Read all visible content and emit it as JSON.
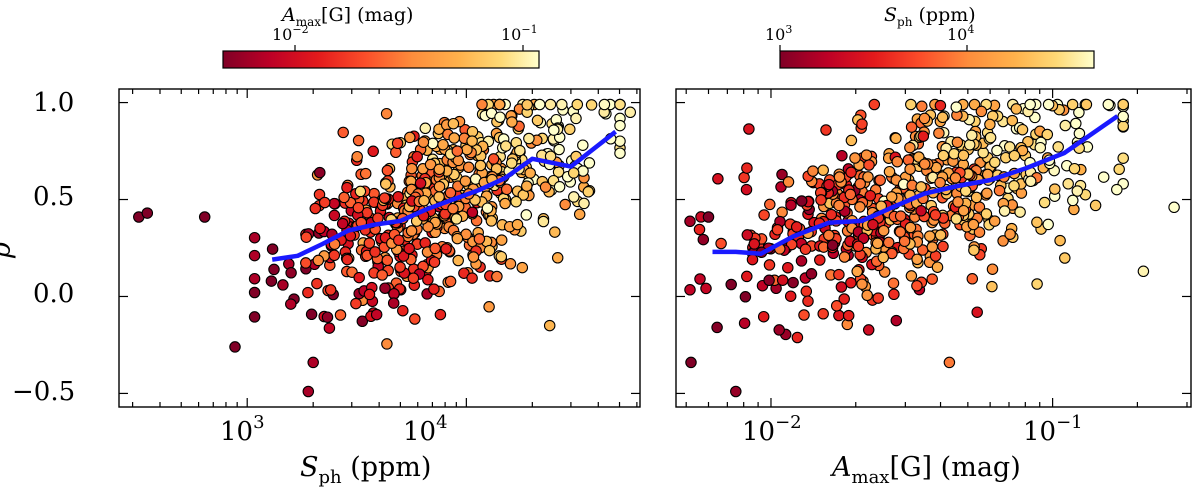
{
  "chart_data": [
    {
      "type": "scatter",
      "xscale": "log",
      "xlim": [
        260,
        62000
      ],
      "ylim": [
        -0.57,
        1.07
      ],
      "xlabel": "S_ph (ppm)",
      "ylabel": "ρ̄",
      "xticks": [
        "10^3",
        "10^4"
      ],
      "yticks": [
        "−0.5",
        "0.0",
        "0.5",
        "1.0"
      ],
      "colorbar": {
        "label": "A_max[G] (mag)",
        "scale": "log",
        "range": [
          0.006,
          0.15
        ],
        "ticks": [
          "10^−2",
          "10^−1"
        ],
        "colormap": "YlOrRd_r"
      },
      "trend_line": {
        "color": "#1a1aff",
        "x": [
          1300,
          1700,
          2200,
          2900,
          3800,
          5000,
          6600,
          8700,
          11500,
          15000,
          20000,
          30000,
          48000
        ],
        "y": [
          0.19,
          0.21,
          0.27,
          0.34,
          0.37,
          0.39,
          0.45,
          0.5,
          0.55,
          0.61,
          0.71,
          0.67,
          0.85
        ]
      },
      "scatter_points": {
        "generated_count": 620,
        "seed": 7,
        "note_sample_extremes": [
          [
            320,
            0.41
          ],
          [
            350,
            0.43
          ],
          [
            640,
            0.41
          ],
          [
            880,
            -0.26
          ],
          [
            1900,
            -0.49
          ],
          [
            2000,
            -0.34
          ],
          [
            24000,
            -0.15
          ],
          [
            36000,
            0.54
          ],
          [
            56000,
            0.95
          ]
        ]
      }
    },
    {
      "type": "scatter",
      "xscale": "log",
      "xlim": [
        0.0046,
        0.31
      ],
      "ylim": [
        -0.57,
        1.07
      ],
      "xlabel": "A_max[G] (mag)",
      "yticks": [
        "−0.5",
        "0.0",
        "0.5",
        "1.0"
      ],
      "xticks": [
        "10^−2",
        "10^−1"
      ],
      "colorbar": {
        "label": "S_ph (ppm)",
        "scale": "log",
        "range": [
          1000,
          28000
        ],
        "ticks": [
          "10^3",
          "10^4"
        ],
        "colormap": "YlOrRd_r"
      },
      "trend_line": {
        "color": "#1a1aff",
        "x": [
          0.0062,
          0.0075,
          0.0092,
          0.012,
          0.016,
          0.021,
          0.027,
          0.035,
          0.046,
          0.06,
          0.08,
          0.11,
          0.17
        ],
        "y": [
          0.23,
          0.23,
          0.22,
          0.31,
          0.38,
          0.39,
          0.46,
          0.53,
          0.57,
          0.6,
          0.66,
          0.74,
          0.93
        ]
      },
      "scatter_points": {
        "generated_count": 620,
        "seed": 11,
        "note_sample_extremes": [
          [
            0.0052,
            -0.34
          ],
          [
            0.006,
            0.41
          ],
          [
            0.0075,
            -0.49
          ],
          [
            0.043,
            -0.34
          ],
          [
            0.21,
            0.13
          ],
          [
            0.27,
            0.46
          ]
        ]
      }
    }
  ],
  "labels": {
    "left_xlabel_main": "S",
    "left_xlabel_sub": "ph",
    "left_xlabel_unit": " (ppm)",
    "right_xlabel_main": "A",
    "right_xlabel_sub": "max",
    "right_xlabel_bracket": "[G]",
    "right_xlabel_unit": " (mag)",
    "ylabel": "ρ",
    "left_cb_main": "A",
    "left_cb_sub": "max",
    "left_cb_bracket": "[G]",
    "left_cb_unit": " (mag)",
    "right_cb_main": "S",
    "right_cb_sub": "ph",
    "right_cb_unit": " (ppm)",
    "tick_10": "10",
    "exp_3": "3",
    "exp_4": "4",
    "exp_m2": "−2",
    "exp_m1": "−1",
    "y_m05": "−0.5",
    "y_00": "0.0",
    "y_05": "0.5",
    "y_10": "1.0"
  }
}
